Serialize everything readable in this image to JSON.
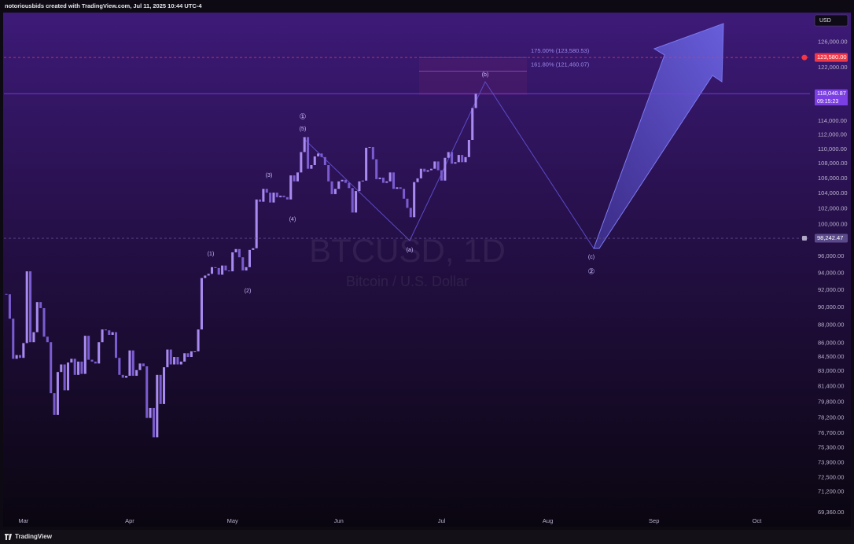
{
  "header": {
    "title": "notoriousbids created with TradingView.com, Jul 11, 2025 10:44 UTC-4"
  },
  "chart_data": {
    "type": "candlestick",
    "title": "BTCUSD, 1D",
    "subtitle": "Bitcoin / U.S. Dollar",
    "currency": "USD",
    "log_scale": true,
    "color_up": "#a88af0",
    "color_down": "#7a5bd0",
    "close": [
      91500,
      88700,
      84300,
      84700,
      84400,
      86000,
      94200,
      86100,
      87200,
      90600,
      89900,
      86700,
      86100,
      80700,
      78500,
      82900,
      83700,
      81000,
      83900,
      84300,
      82600,
      84000,
      82700,
      86800,
      84200,
      84000,
      83800,
      86100,
      87500,
      87400,
      86900,
      87200,
      84400,
      82600,
      82300,
      82500,
      85200,
      82500,
      83100,
      83800,
      83500,
      78200,
      79200,
      76300,
      82600,
      79600,
      83400,
      85300,
      83700,
      84500,
      83700,
      84000,
      84900,
      84500,
      85100,
      85100,
      87500,
      93400,
      93700,
      93900,
      94700,
      94600,
      93800,
      94900,
      94300,
      94200,
      96500,
      96900,
      95900,
      94300,
      94700,
      96800,
      97000,
      103200,
      102900,
      104600,
      104100,
      102800,
      104100,
      103500,
      103700,
      103500,
      103200,
      106400,
      105600,
      106800,
      109600,
      111700,
      107300,
      107800,
      109000,
      109400,
      108900,
      107800,
      105600,
      103900,
      104600,
      105600,
      105800,
      105400,
      104700,
      101500,
      104300,
      105600,
      105700,
      110200,
      110300,
      108600,
      105900,
      106100,
      105400,
      105600,
      106800,
      104600,
      104800,
      104600,
      103300,
      102100,
      100900,
      105500,
      106000,
      107300,
      106900,
      107100,
      107300,
      108300,
      107100,
      105700,
      108800,
      109600,
      108000,
      108200,
      109200,
      108200,
      108900,
      111300,
      115900,
      118040.87
    ],
    "xlim": [
      -0.7,
      234.5
    ],
    "xticks": [
      {
        "value": 5,
        "label": "Mar"
      },
      {
        "value": 36,
        "label": "Apr"
      },
      {
        "value": 66,
        "label": "May"
      },
      {
        "value": 97,
        "label": "Jun"
      },
      {
        "value": 127,
        "label": "Jul"
      },
      {
        "value": 158,
        "label": "Aug"
      },
      {
        "value": 189,
        "label": "Sep"
      },
      {
        "value": 219,
        "label": "Oct"
      }
    ],
    "ylim": [
      68800,
      130700
    ],
    "yticks": [
      {
        "value": 126000,
        "label": "126,000.00"
      },
      {
        "value": 122000,
        "label": "122,000.00"
      },
      {
        "value": 114000,
        "label": "114,000.00"
      },
      {
        "value": 112000,
        "label": "112,000.00"
      },
      {
        "value": 110000,
        "label": "110,000.00"
      },
      {
        "value": 108000,
        "label": "108,000.00"
      },
      {
        "value": 106000,
        "label": "106,000.00"
      },
      {
        "value": 104000,
        "label": "104,000.00"
      },
      {
        "value": 102000,
        "label": "102,000.00"
      },
      {
        "value": 100000,
        "label": "100,000.00"
      },
      {
        "value": 96000,
        "label": "96,000.00"
      },
      {
        "value": 94000,
        "label": "94,000.00"
      },
      {
        "value": 92000,
        "label": "92,000.00"
      },
      {
        "value": 90000,
        "label": "90,000.00"
      },
      {
        "value": 88000,
        "label": "88,000.00"
      },
      {
        "value": 86000,
        "label": "86,000.00"
      },
      {
        "value": 84500,
        "label": "84,500.00"
      },
      {
        "value": 83000,
        "label": "83,000.00"
      },
      {
        "value": 81400,
        "label": "81,400.00"
      },
      {
        "value": 79800,
        "label": "79,800.00"
      },
      {
        "value": 78200,
        "label": "78,200.00"
      },
      {
        "value": 76700,
        "label": "76,700.00"
      },
      {
        "value": 75300,
        "label": "75,300.00"
      },
      {
        "value": 73900,
        "label": "73,900.00"
      },
      {
        "value": 72500,
        "label": "72,500.00"
      },
      {
        "value": 71200,
        "label": "71,200.00"
      },
      {
        "value": 69360,
        "label": "69,360.00"
      }
    ],
    "price_lines": [
      {
        "value": 123580,
        "label": "123,580.00",
        "color": "#f23645",
        "dashed": true
      },
      {
        "value": 118040.87,
        "label": "118,040.87",
        "color": "#7b3fe4",
        "dashed": false
      },
      {
        "value": 98242.47,
        "label": "98,242.47",
        "color": "#5a4a8a",
        "dashed": true
      }
    ],
    "countdown": "09:15:23",
    "fib_levels": [
      {
        "value": 123580.53,
        "label": "175.00% (123,580.53)"
      },
      {
        "value": 121460.07,
        "label": "161.80% (121,460.07)"
      }
    ],
    "annotations": [
      "(1)",
      "(2)",
      "(3)",
      "(4)",
      "(5)",
      "①",
      "(a)",
      "(b)",
      "(c)",
      "②"
    ]
  },
  "footer": {
    "brand": "TradingView"
  }
}
